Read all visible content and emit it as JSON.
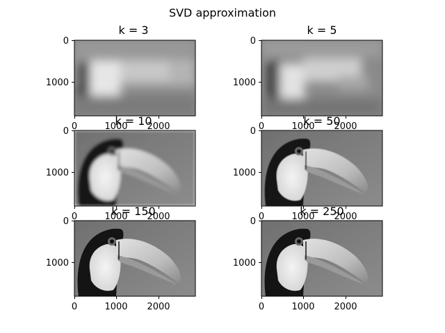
{
  "figure": {
    "suptitle": "SVD approximation"
  },
  "axes": {
    "x_ticks": [
      "0",
      "1000",
      "2000"
    ],
    "y_ticks": [
      "0",
      "1000"
    ]
  },
  "panels": [
    {
      "title": "k = 3",
      "detail": "coarse"
    },
    {
      "title": "k = 5",
      "detail": "coarse"
    },
    {
      "title": "k = 10",
      "detail": "medium"
    },
    {
      "title": "k = 50",
      "detail": "fine"
    },
    {
      "title": "k = 150",
      "detail": "fine"
    },
    {
      "title": "k = 250",
      "detail": "fine"
    }
  ],
  "colors": {
    "frame": "#000000",
    "background": "#ffffff"
  }
}
